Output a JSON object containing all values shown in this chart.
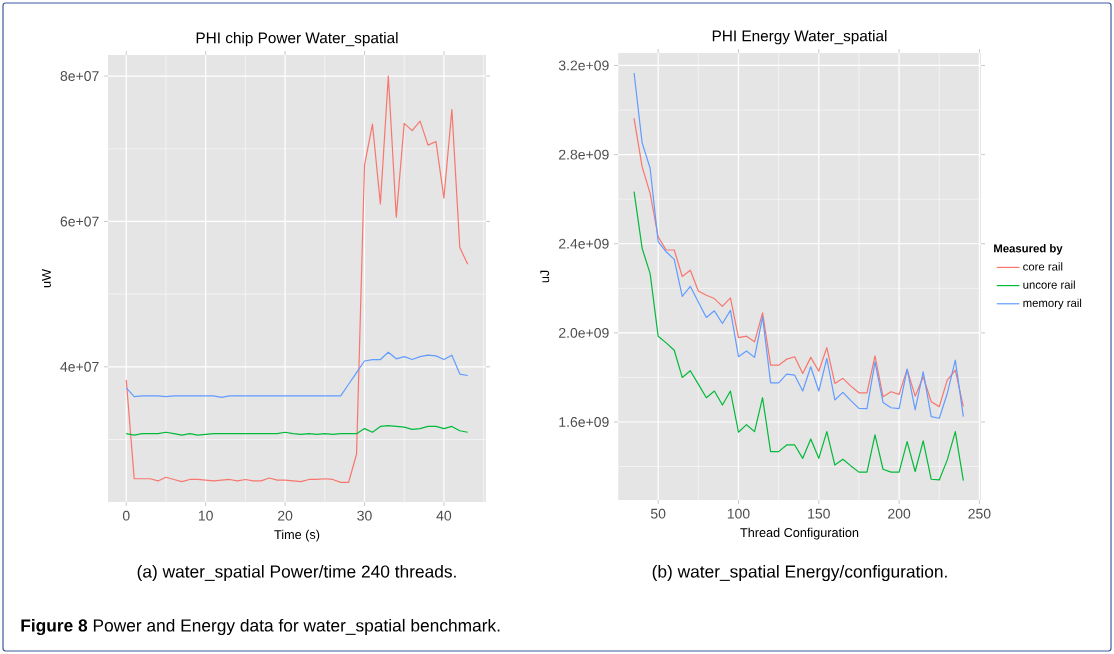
{
  "chart_data": [
    {
      "type": "line",
      "title": "PHI chip Power Water_spatial",
      "xlabel": "Time (s)",
      "ylabel": "uW",
      "x": [
        0,
        1,
        2,
        3,
        4,
        5,
        6,
        7,
        8,
        9,
        10,
        11,
        12,
        13,
        14,
        15,
        16,
        17,
        18,
        19,
        20,
        21,
        22,
        23,
        24,
        25,
        26,
        27,
        28,
        29,
        30,
        31,
        32,
        33,
        34,
        35,
        36,
        37,
        38,
        39,
        40,
        41,
        42,
        43
      ],
      "series": [
        {
          "color": "#f8766d",
          "values": [
            38200000,
            24600000,
            24600000,
            24600000,
            24300000,
            24800000,
            24500000,
            24200000,
            24500000,
            24500000,
            24400000,
            24300000,
            24400000,
            24500000,
            24300000,
            24500000,
            24300000,
            24300000,
            24700000,
            24400000,
            24400000,
            24300000,
            24200000,
            24500000,
            24500000,
            24600000,
            24500000,
            24100000,
            24100000,
            28000000,
            67700000,
            73400000,
            62400000,
            80000000,
            60600000,
            73500000,
            72500000,
            73800000,
            70500000,
            71000000,
            63200000,
            75400000,
            56400000,
            54100000
          ]
        },
        {
          "color": "#00ba38",
          "values": [
            30800000,
            30600000,
            30800000,
            30800000,
            30800000,
            31000000,
            30800000,
            30600000,
            30800000,
            30600000,
            30700000,
            30800000,
            30800000,
            30800000,
            30800000,
            30800000,
            30800000,
            30800000,
            30800000,
            30800000,
            31000000,
            30800000,
            30700000,
            30800000,
            30700000,
            30800000,
            30700000,
            30800000,
            30800000,
            30800000,
            31500000,
            31000000,
            31800000,
            31900000,
            31800000,
            31700000,
            31400000,
            31500000,
            31800000,
            31800000,
            31500000,
            31800000,
            31200000,
            31000000
          ]
        },
        {
          "color": "#619cff",
          "values": [
            37100000,
            35900000,
            36000000,
            36000000,
            36000000,
            35900000,
            36000000,
            36000000,
            36000000,
            36000000,
            36000000,
            36000000,
            35800000,
            36000000,
            36000000,
            36000000,
            36000000,
            36000000,
            36000000,
            36000000,
            36000000,
            36000000,
            36000000,
            36000000,
            36000000,
            36000000,
            36000000,
            36000000,
            37600000,
            39200000,
            40800000,
            41000000,
            41000000,
            42000000,
            41100000,
            41400000,
            41000000,
            41400000,
            41600000,
            41500000,
            41000000,
            41600000,
            39000000,
            38800000
          ]
        }
      ],
      "xlim": [
        -2.3,
        45.3
      ],
      "ylim": [
        21400000,
        82900000
      ],
      "xticks": [
        0,
        10,
        20,
        30,
        40
      ],
      "yticks": [
        {
          "value": 40000000,
          "label": "4e+07"
        },
        {
          "value": 60000000,
          "label": "6e+07"
        },
        {
          "value": 80000000,
          "label": "8e+07"
        }
      ],
      "grid": true,
      "annotations": [
        "(a) water_spatial Power/time 240 threads."
      ]
    },
    {
      "type": "line",
      "title": "PHI Energy Water_spatial",
      "xlabel": "Thread Configuration",
      "ylabel": "uJ",
      "x": [
        35,
        40,
        45,
        50,
        55,
        60,
        65,
        70,
        75,
        80,
        85,
        90,
        95,
        100,
        105,
        110,
        115,
        120,
        125,
        130,
        135,
        140,
        145,
        150,
        155,
        160,
        165,
        170,
        175,
        180,
        185,
        190,
        195,
        200,
        205,
        210,
        215,
        220,
        225,
        230,
        235,
        240
      ],
      "series": [
        {
          "name": "core rail",
          "color": "#f8766d",
          "values": [
            2963000000.0,
            2746000000.0,
            2626000000.0,
            2431000000.0,
            2372000000.0,
            2372000000.0,
            2253000000.0,
            2281000000.0,
            2188000000.0,
            2169000000.0,
            2154000000.0,
            2119000000.0,
            2157000000.0,
            1979000000.0,
            1985000000.0,
            1960000000.0,
            2090000000.0,
            1855000000.0,
            1855000000.0,
            1882000000.0,
            1893000000.0,
            1818000000.0,
            1890000000.0,
            1828000000.0,
            1934000000.0,
            1773000000.0,
            1796000000.0,
            1761000000.0,
            1731000000.0,
            1731000000.0,
            1897000000.0,
            1713000000.0,
            1736000000.0,
            1724000000.0,
            1836000000.0,
            1716000000.0,
            1803000000.0,
            1691000000.0,
            1669000000.0,
            1788000000.0,
            1833000000.0,
            1669000000.0
          ]
        },
        {
          "name": "uncore rail",
          "color": "#00ba38",
          "values": [
            2634000000.0,
            2380000000.0,
            2266000000.0,
            1985000000.0,
            1955000000.0,
            1922000000.0,
            1800000000.0,
            1830000000.0,
            1770000000.0,
            1709000000.0,
            1739000000.0,
            1676000000.0,
            1739000000.0,
            1554000000.0,
            1588000000.0,
            1557000000.0,
            1709000000.0,
            1467000000.0,
            1467000000.0,
            1497000000.0,
            1497000000.0,
            1437000000.0,
            1524000000.0,
            1437000000.0,
            1557000000.0,
            1407000000.0,
            1433000000.0,
            1403000000.0,
            1375000000.0,
            1375000000.0,
            1542000000.0,
            1388000000.0,
            1375000000.0,
            1375000000.0,
            1512000000.0,
            1378000000.0,
            1515000000.0,
            1343000000.0,
            1340000000.0,
            1430000000.0,
            1557000000.0,
            1337000000.0
          ]
        },
        {
          "name": "memory rail",
          "color": "#619cff",
          "values": [
            3166000000.0,
            2854000000.0,
            2739000000.0,
            2409000000.0,
            2364000000.0,
            2330000000.0,
            2164000000.0,
            2209000000.0,
            2139000000.0,
            2069000000.0,
            2099000000.0,
            2042000000.0,
            2101000000.0,
            1893000000.0,
            1919000000.0,
            1890000000.0,
            2072000000.0,
            1776000000.0,
            1776000000.0,
            1815000000.0,
            1810000000.0,
            1739000000.0,
            1848000000.0,
            1739000000.0,
            1885000000.0,
            1699000000.0,
            1733000000.0,
            1696000000.0,
            1661000000.0,
            1660000000.0,
            1870000000.0,
            1688000000.0,
            1664000000.0,
            1660000000.0,
            1837000000.0,
            1654000000.0,
            1825000000.0,
            1624000000.0,
            1617000000.0,
            1728000000.0,
            1878000000.0,
            1624000000.0
          ]
        }
      ],
      "xlim": [
        25,
        251
      ],
      "ylim": [
        1250000000.0,
        3256000000.0
      ],
      "xticks": [
        50,
        100,
        150,
        200,
        250
      ],
      "yticks": [
        {
          "value": 1600000000.0,
          "label": "1.6e+09"
        },
        {
          "value": 2000000000.0,
          "label": "2.0e+09"
        },
        {
          "value": 2400000000.0,
          "label": "2.4e+09"
        },
        {
          "value": 2800000000.0,
          "label": "2.8e+09"
        },
        {
          "value": 3200000000.0,
          "label": "3.2e+09"
        }
      ],
      "grid": true,
      "legend": "right",
      "legend_title": "Measured by",
      "annotations": [
        "(b) water_spatial Energy/configuration.",
        "**Figure 8** Power and Energy data for water_spatial benchmark."
      ]
    }
  ]
}
